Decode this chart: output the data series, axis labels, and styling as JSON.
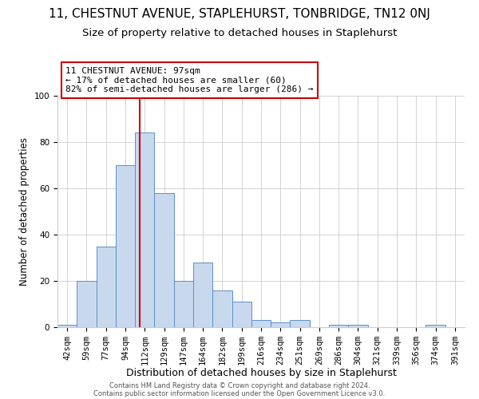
{
  "title": "11, CHESTNUT AVENUE, STAPLEHURST, TONBRIDGE, TN12 0NJ",
  "subtitle": "Size of property relative to detached houses in Staplehurst",
  "xlabel": "Distribution of detached houses by size in Staplehurst",
  "ylabel": "Number of detached properties",
  "bar_labels": [
    "42sqm",
    "59sqm",
    "77sqm",
    "94sqm",
    "112sqm",
    "129sqm",
    "147sqm",
    "164sqm",
    "182sqm",
    "199sqm",
    "216sqm",
    "234sqm",
    "251sqm",
    "269sqm",
    "286sqm",
    "304sqm",
    "321sqm",
    "339sqm",
    "356sqm",
    "374sqm",
    "391sqm"
  ],
  "bar_values": [
    1,
    20,
    35,
    70,
    84,
    58,
    20,
    28,
    16,
    11,
    3,
    2,
    3,
    0,
    1,
    1,
    0,
    0,
    0,
    1,
    0
  ],
  "bar_color": "#c9d9ed",
  "bar_edge_color": "#5b8fc9",
  "red_line_x": 3.75,
  "red_line_color": "#cc0000",
  "annotation_line1": "11 CHESTNUT AVENUE: 97sqm",
  "annotation_line2": "← 17% of detached houses are smaller (60)",
  "annotation_line3": "82% of semi-detached houses are larger (286) →",
  "annotation_box_color": "#ffffff",
  "annotation_box_edge": "#cc0000",
  "ylim": [
    0,
    100
  ],
  "footer1": "Contains HM Land Registry data © Crown copyright and database right 2024.",
  "footer2": "Contains public sector information licensed under the Open Government Licence v3.0.",
  "title_fontsize": 11,
  "subtitle_fontsize": 9.5,
  "xlabel_fontsize": 9,
  "ylabel_fontsize": 8.5,
  "tick_fontsize": 7.5,
  "annotation_fontsize": 8,
  "footer_fontsize": 6
}
